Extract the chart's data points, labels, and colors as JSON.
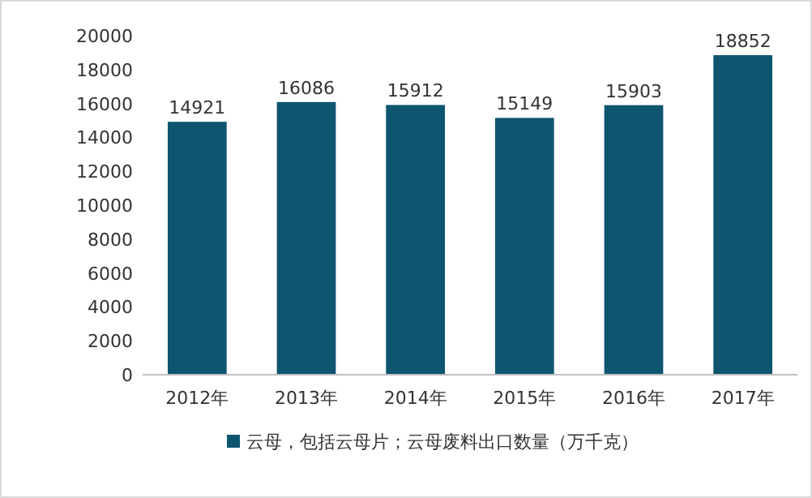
{
  "chart_data": {
    "type": "bar",
    "categories": [
      "2012年",
      "2013年",
      "2014年",
      "2015年",
      "2016年",
      "2017年"
    ],
    "series": [
      {
        "name": "云母，包括云母片；云母废料出口数量（万千克）",
        "color": "#0e5570",
        "values": [
          14921,
          16086,
          15912,
          15149,
          15903,
          18852
        ]
      }
    ],
    "ylim": [
      0,
      20000
    ],
    "yticks": [
      0,
      2000,
      4000,
      6000,
      8000,
      10000,
      12000,
      14000,
      16000,
      18000,
      20000
    ],
    "data_labels": true,
    "legend": "bottom",
    "grid": false
  }
}
